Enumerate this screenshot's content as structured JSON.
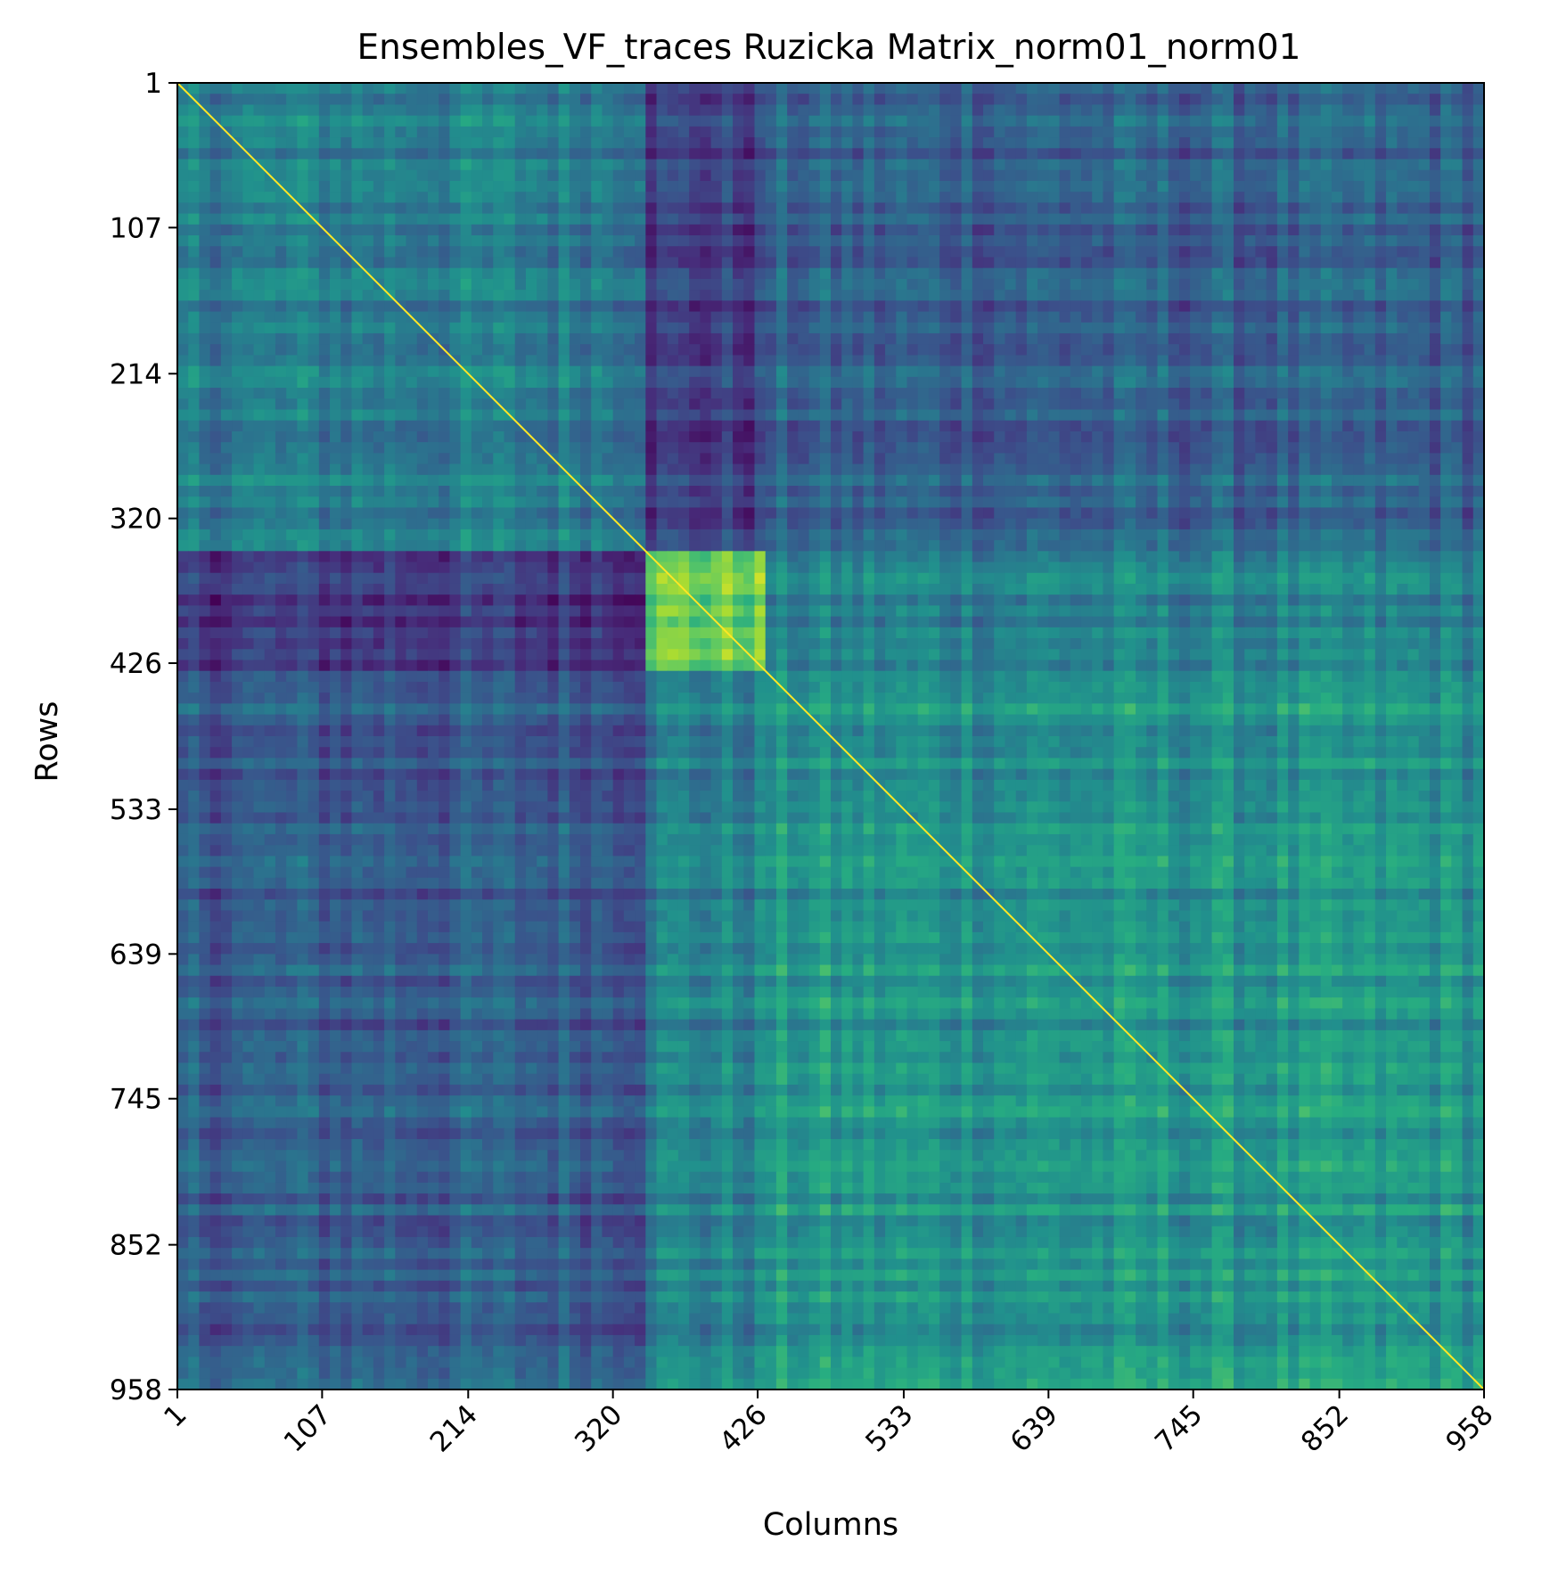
{
  "chart_data": {
    "type": "heatmap",
    "title": "Ensembles_VF_traces Ruzicka Matrix_norm01_norm01",
    "xlabel": "Columns",
    "ylabel": "Rows",
    "n_rows": 958,
    "n_cols": 958,
    "x_ticks": [
      "1",
      "107",
      "214",
      "320",
      "426",
      "533",
      "639",
      "745",
      "852",
      "958"
    ],
    "y_ticks": [
      "1",
      "107",
      "214",
      "320",
      "426",
      "533",
      "639",
      "745",
      "852",
      "958"
    ],
    "value_range": [
      0,
      1
    ],
    "colormap": "viridis",
    "diagonal_value": 1.0,
    "grid": false,
    "blocks": {
      "boundaries": [
        1,
        343,
        428,
        958
      ],
      "mean_values": [
        [
          0.42,
          0.18,
          0.3
        ],
        [
          0.18,
          0.78,
          0.45
        ],
        [
          0.3,
          0.45,
          0.52
        ]
      ]
    }
  }
}
